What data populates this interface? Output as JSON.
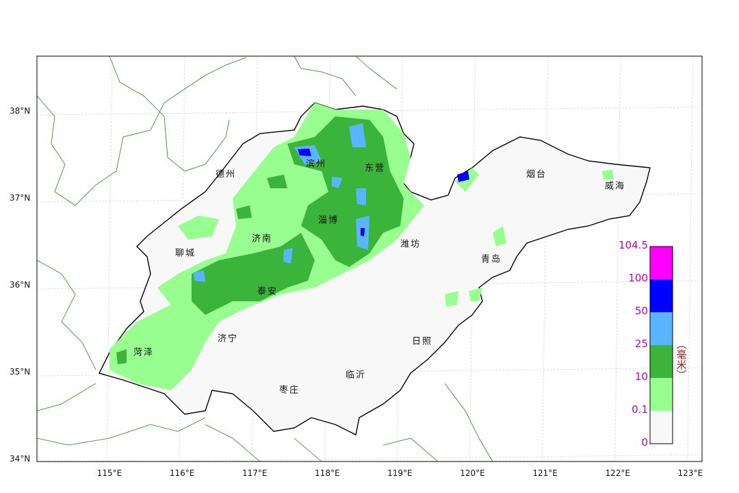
{
  "map": {
    "lat_ticks": [
      "38°N",
      "37°N",
      "36°N",
      "35°N",
      "34°N"
    ],
    "lon_ticks": [
      "115°E",
      "116°E",
      "117°E",
      "118°E",
      "119°E",
      "120°E",
      "121°E",
      "122°E",
      "123°E"
    ],
    "cities": [
      "德州",
      "滨州",
      "东营",
      "烟台",
      "威海",
      "淄博",
      "济南",
      "聊城",
      "潍坊",
      "青岛",
      "泰安",
      "济宁",
      "日照",
      "菏泽",
      "临沂",
      "枣庄"
    ]
  },
  "colorbar": {
    "unit": "（毫米）",
    "labels": [
      "104.5",
      "100",
      "50",
      "25",
      "10",
      "0.1",
      "0"
    ],
    "colors": [
      "#ff00ff",
      "#0000ff",
      "#5ab4ff",
      "#3cb43c",
      "#98fe90",
      "#f8f8f8"
    ]
  },
  "colors": {
    "border": "#1a8a1a",
    "province": "#000000",
    "grid": "#cccccc"
  }
}
